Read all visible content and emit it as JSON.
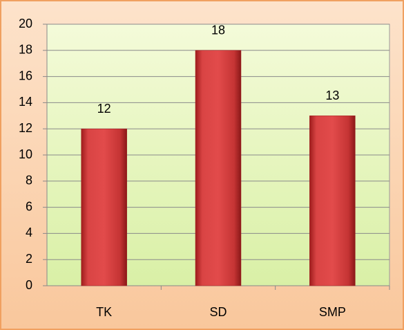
{
  "chart_data": {
    "type": "bar",
    "categories": [
      "TK",
      "SD",
      "SMP"
    ],
    "values": [
      12,
      18,
      13
    ],
    "color": "#d03a3a",
    "ylim": [
      0,
      20
    ],
    "yticks": [
      0,
      2,
      4,
      6,
      8,
      10,
      12,
      14,
      16,
      18,
      20
    ],
    "grid": true
  }
}
